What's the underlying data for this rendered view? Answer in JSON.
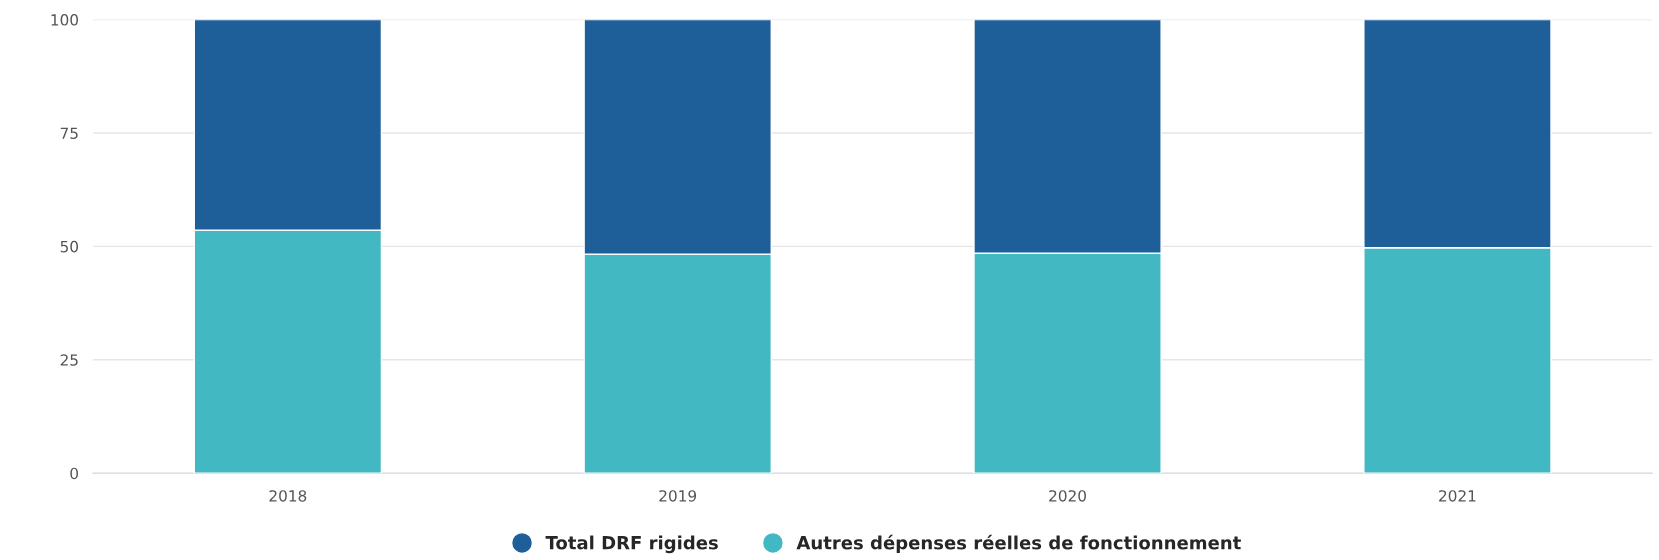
{
  "chart_data": {
    "type": "bar",
    "stacked": true,
    "categories": [
      "2018",
      "2019",
      "2020",
      "2021"
    ],
    "series": [
      {
        "name": "Autres dépenses réelles de fonctionnement",
        "color": "#42b8c2",
        "values": [
          53.6,
          48.3,
          48.5,
          49.7
        ]
      },
      {
        "name": "Total DRF rigides",
        "color": "#1f5f99",
        "values": [
          46.4,
          51.7,
          51.5,
          50.3
        ]
      }
    ],
    "ylim": [
      0,
      100
    ],
    "yticks": [
      0,
      25,
      50,
      75,
      100
    ],
    "grid": "y",
    "legend": "bottom"
  }
}
